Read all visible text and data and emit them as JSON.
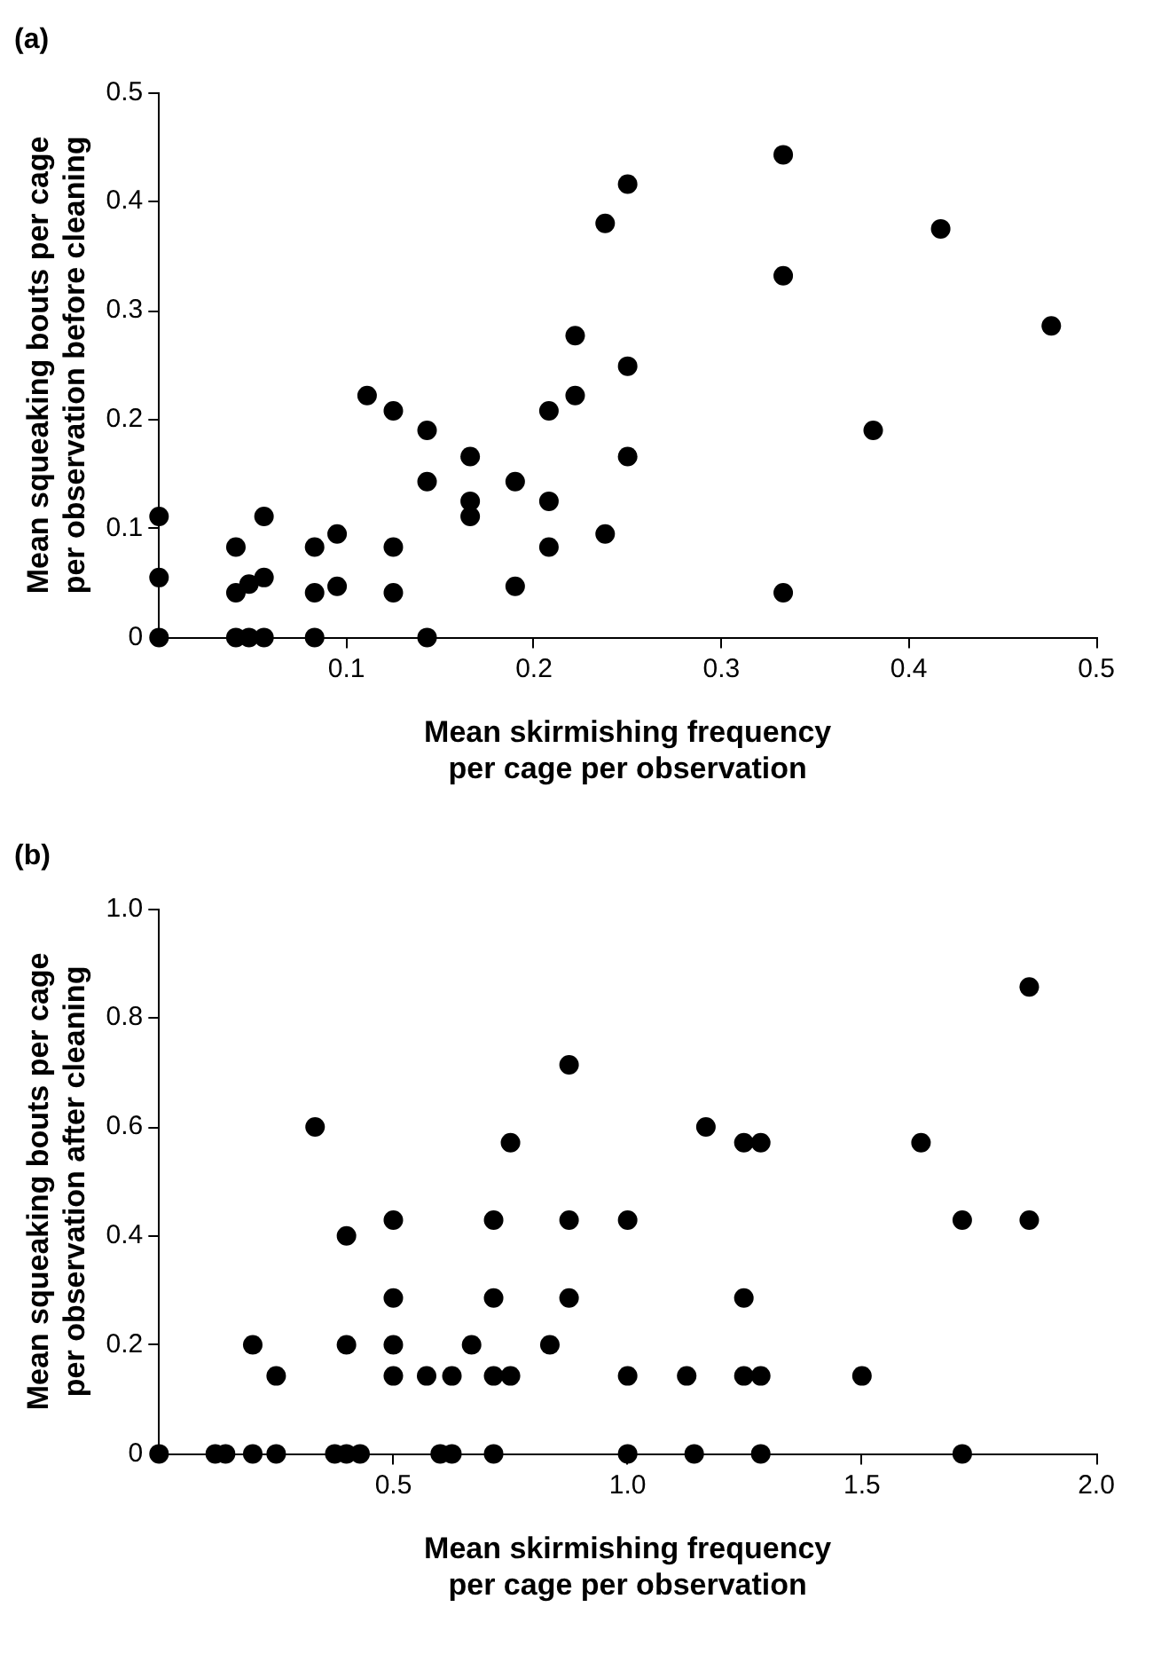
{
  "chart_data": [
    {
      "type": "scatter",
      "title": "(a)",
      "xlabel": "Mean skirmishing frequency\nper cage per observation",
      "ylabel": "Mean squeaking bouts per cage\nper observation before cleaning",
      "xlim": [
        0,
        0.5
      ],
      "xticks": [
        0.1,
        0.2,
        0.3,
        0.4,
        0.5
      ],
      "ylim": [
        0,
        0.5
      ],
      "yticks": [
        0,
        0.1,
        0.2,
        0.3,
        0.4,
        0.5
      ],
      "grid": false,
      "legend": false,
      "marker": "circle",
      "series": [
        {
          "color": "#000000",
          "x": [
            0,
            0,
            0,
            0.041,
            0.041,
            0.041,
            0.048,
            0.048,
            0.056,
            0.056,
            0.056,
            0.083,
            0.083,
            0.083,
            0.095,
            0.095,
            0.111,
            0.125,
            0.125,
            0.125,
            0.143,
            0.143,
            0.143,
            0.166,
            0.166,
            0.166,
            0.19,
            0.19,
            0.208,
            0.208,
            0.208,
            0.222,
            0.222,
            0.238,
            0.238,
            0.25,
            0.25,
            0.25,
            0.333,
            0.333,
            0.333,
            0.381,
            0.417,
            0.476
          ],
          "values": [
            0,
            0.055,
            0.111,
            0.083,
            0.041,
            0,
            0.049,
            0,
            0.111,
            0.055,
            0,
            0.083,
            0.041,
            0,
            0.095,
            0.047,
            0.222,
            0.208,
            0.083,
            0.041,
            0.19,
            0.143,
            0,
            0.166,
            0.125,
            0.111,
            0.143,
            0.047,
            0.208,
            0.125,
            0.083,
            0.277,
            0.222,
            0.38,
            0.095,
            0.416,
            0.249,
            0.166,
            0.443,
            0.332,
            0.041,
            0.19,
            0.375,
            0.286
          ]
        }
      ]
    },
    {
      "type": "scatter",
      "title": "(b)",
      "xlabel": "Mean skirmishing frequency\nper cage per observation",
      "ylabel": "Mean squeaking bouts per cage\nper observation after cleaning",
      "xlim": [
        0,
        2.0
      ],
      "xticks": [
        0.5,
        {
          "value": 1,
          "label": "1.0"
        },
        1.5,
        {
          "value": 2,
          "label": "2.0"
        }
      ],
      "ylim": [
        0,
        1.0
      ],
      "yticks": [
        0,
        0.2,
        0.4,
        0.6,
        0.8,
        {
          "value": 1,
          "label": "1.0"
        }
      ],
      "grid": false,
      "legend": false,
      "marker": "circle",
      "series": [
        {
          "color": "#000000",
          "x": [
            0,
            0.12,
            0.142,
            0.2,
            0.2,
            0.25,
            0.25,
            0.333,
            0.375,
            0.4,
            0.4,
            0.4,
            0.429,
            0.5,
            0.5,
            0.5,
            0.5,
            0.571,
            0.6,
            0.625,
            0.625,
            0.667,
            0.714,
            0.714,
            0.714,
            0.714,
            0.75,
            0.75,
            0.834,
            0.875,
            0.875,
            0.875,
            1.0,
            1.0,
            1.0,
            1.126,
            1.142,
            1.167,
            1.248,
            1.248,
            1.248,
            1.284,
            1.284,
            1.284,
            1.5,
            1.626,
            1.714,
            1.714,
            1.857,
            1.857
          ],
          "values": [
            0,
            0,
            0,
            0,
            0.2,
            0,
            0.143,
            0.6,
            0,
            0,
            0.4,
            0.2,
            0,
            0.429,
            0.286,
            0.2,
            0.143,
            0.143,
            0,
            0,
            0.143,
            0.2,
            0,
            0.143,
            0.286,
            0.429,
            0.571,
            0.143,
            0.2,
            0.714,
            0.429,
            0.286,
            0.429,
            0.143,
            0,
            0.143,
            0,
            0.6,
            0.571,
            0.286,
            0.143,
            0.571,
            0.143,
            0,
            0.143,
            0.571,
            0.429,
            0,
            0.857,
            0.429
          ]
        }
      ]
    }
  ]
}
